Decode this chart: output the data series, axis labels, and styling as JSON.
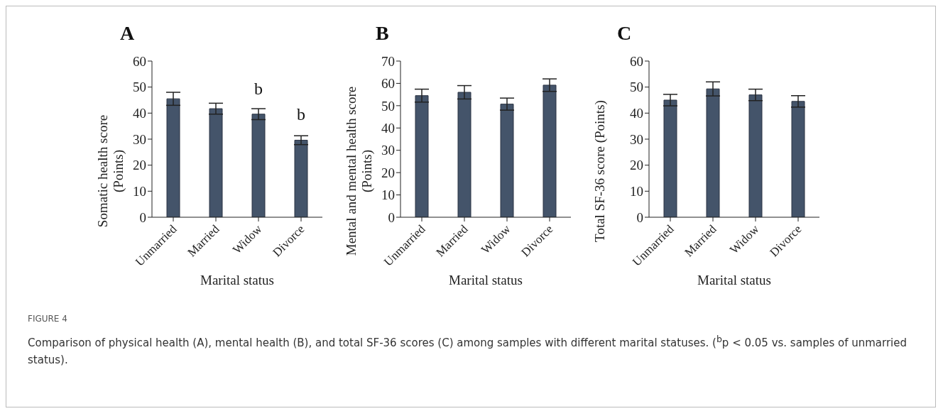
{
  "chart_data": [
    {
      "type": "bar",
      "title": "A",
      "xlabel": "Marital status",
      "ylabel": "Somatic health score (Points)",
      "categories": [
        "Unmarried",
        "Married",
        "Widow",
        "Divorce"
      ],
      "values": [
        45.5,
        41.7,
        39.6,
        29.6
      ],
      "errors": [
        2.5,
        2.1,
        2.1,
        1.7
      ],
      "color": "#44546a",
      "ylim": [
        0,
        60
      ],
      "yticks": [
        0,
        10,
        20,
        30,
        40,
        50,
        60
      ],
      "grid": false,
      "legend": false,
      "annotations": [
        {
          "text": "b",
          "x": "Widow",
          "y": 39.6
        },
        {
          "text": "b",
          "x": "Divorce",
          "y": 29.6
        },
        "FIGURE 4",
        "Comparison of physical health (A), mental health (B), and total SF-36 scores (C) among samples with different marital statuses. ($^{b}$p < 0.05 vs. samples of unmarried status)."
      ]
    },
    {
      "type": "bar",
      "title": "B",
      "xlabel": "Marital status",
      "ylabel": "Mental and mental health score (Points)",
      "categories": [
        "Unmarried",
        "Married",
        "Widow",
        "Divorce"
      ],
      "values": [
        54.5,
        56,
        50.7,
        59.2
      ],
      "errors": [
        2.9,
        3,
        2.7,
        2.8
      ],
      "color": "#44546a",
      "ylim": [
        0,
        70
      ],
      "yticks": [
        0,
        10,
        20,
        30,
        40,
        50,
        60,
        70
      ],
      "grid": false,
      "legend": false
    },
    {
      "type": "bar",
      "title": "C",
      "xlabel": "Marital status",
      "ylabel": "Total SF-36 score (Points)",
      "categories": [
        "Unmarried",
        "Married",
        "Widow",
        "Divorce"
      ],
      "values": [
        45,
        49.3,
        47,
        44.5
      ],
      "errors": [
        2.2,
        2.7,
        2.2,
        2.2
      ],
      "color": "#44546a",
      "ylim": [
        0,
        60
      ],
      "yticks": [
        0,
        10,
        20,
        30,
        40,
        50,
        60
      ],
      "grid": false,
      "legend": false
    }
  ]
}
